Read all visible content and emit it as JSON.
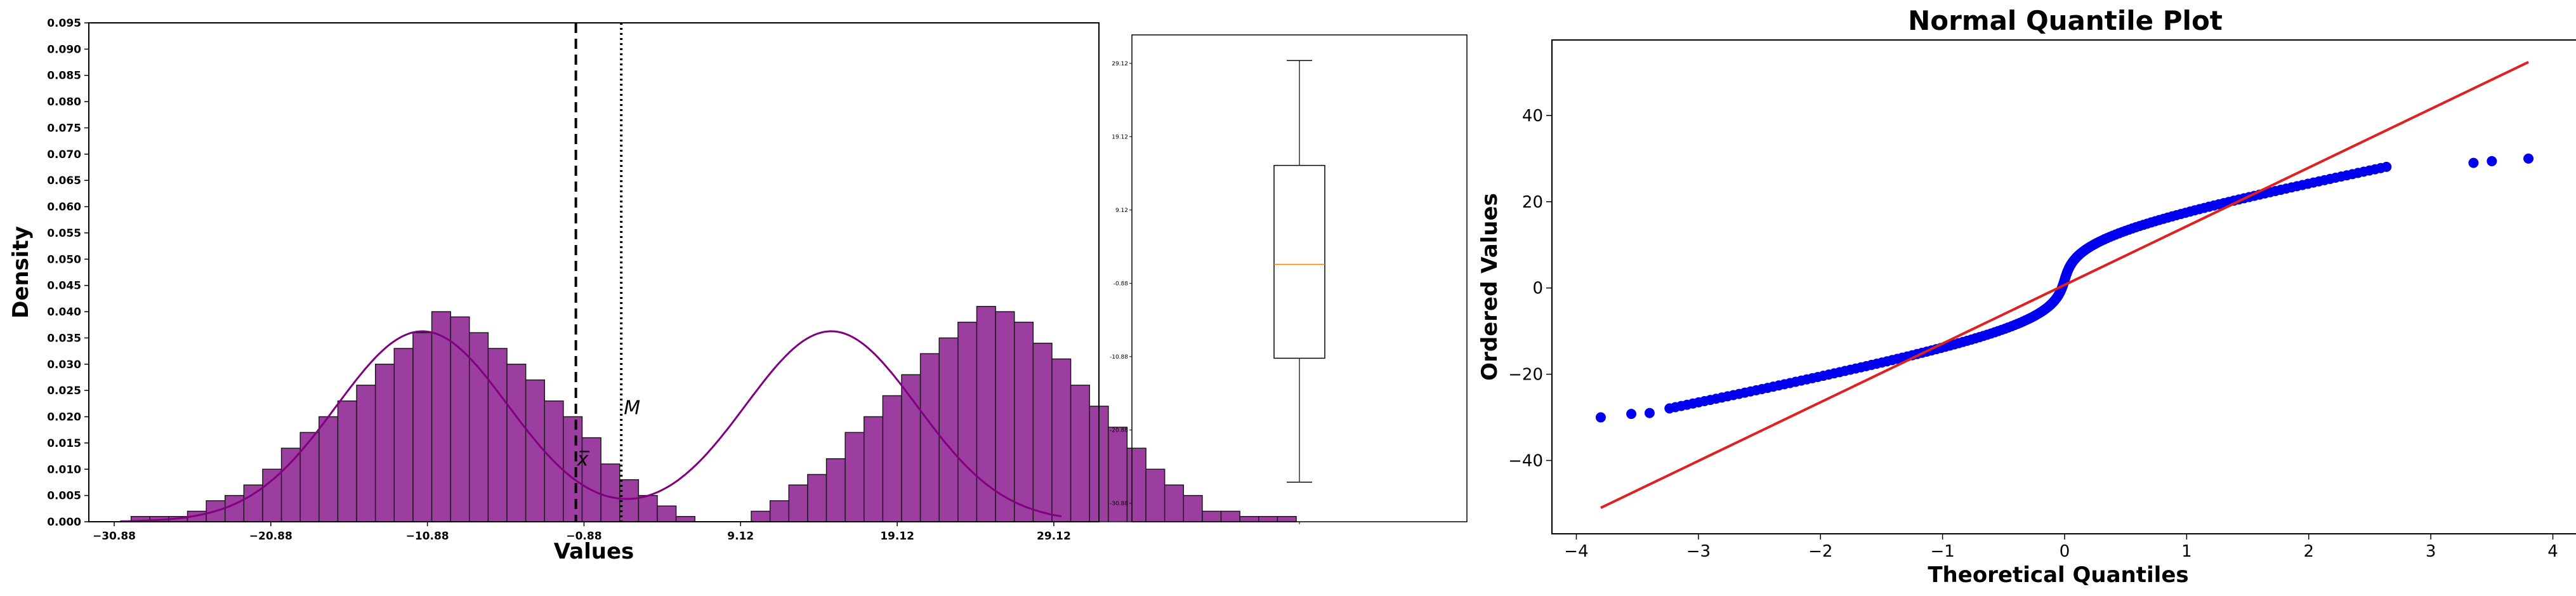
{
  "colors": {
    "bar_fill": "#9b3ea0",
    "bar_edge": "#1a1a1a",
    "kde_line": "#800080",
    "median_line": "#ff7f0e",
    "qq_points": "#0000ee",
    "qq_line": "#dd2222"
  },
  "chart_data": [
    {
      "type": "bar",
      "subtype": "histogram_with_kde",
      "xlabel": "Values",
      "ylabel": "Density",
      "xlim": [
        -32.5,
        32.0
      ],
      "ylim": [
        0,
        0.095
      ],
      "x_ticks": [
        -30.88,
        -20.88,
        -10.88,
        -0.88,
        9.12,
        19.12,
        29.12
      ],
      "x_tick_labels": [
        "−30.88",
        "−20.88",
        "−10.88",
        "−0.88",
        "9.12",
        "19.12",
        "29.12"
      ],
      "y_ticks": [
        "0.000",
        "0.005",
        "0.010",
        "0.015",
        "0.020",
        "0.025",
        "0.030",
        "0.035",
        "0.040",
        "0.045",
        "0.050",
        "0.055",
        "0.060",
        "0.065",
        "0.070",
        "0.075",
        "0.080",
        "0.085",
        "0.090",
        "0.095"
      ],
      "bin_start": -29.8,
      "bin_width": 1.2,
      "values": [
        0.001,
        0.001,
        0.001,
        0.002,
        0.004,
        0.005,
        0.007,
        0.01,
        0.014,
        0.017,
        0.02,
        0.023,
        0.026,
        0.03,
        0.033,
        0.036,
        0.04,
        0.039,
        0.036,
        0.033,
        0.03,
        0.027,
        0.023,
        0.02,
        0.016,
        0.011,
        0.008,
        0.005,
        0.003,
        0.001,
        0.0,
        0.0,
        0.0,
        0.002,
        0.004,
        0.007,
        0.009,
        0.012,
        0.017,
        0.02,
        0.024,
        0.028,
        0.032,
        0.035,
        0.038,
        0.041,
        0.04,
        0.038,
        0.034,
        0.031,
        0.026,
        0.022,
        0.018,
        0.014,
        0.01,
        0.007,
        0.005,
        0.002,
        0.002,
        0.001,
        0.001,
        0.001
      ],
      "kde_components": [
        {
          "mu": -11.2,
          "sigma": 5.5,
          "weight": 0.5
        },
        {
          "mu": 14.9,
          "sigma": 5.5,
          "weight": 0.5
        }
      ],
      "mean": -1.4,
      "median": 1.5,
      "mean_label": "x̅",
      "median_label": "M"
    },
    {
      "type": "box",
      "y_ticks": [
        "29.12",
        "19.12",
        "9.12",
        "-0.88",
        "-10.88",
        "-20.88",
        "-30.88"
      ],
      "ylim": [
        -33.4,
        33.0
      ],
      "whisker_high": 29.5,
      "q3": 15.2,
      "median": 1.7,
      "q1": -11.1,
      "whisker_low": -28.0
    },
    {
      "type": "scatter",
      "subtype": "normal_quantile_plot",
      "title": "Normal Quantile Plot",
      "xlabel": "Theoretical Quantiles",
      "ylabel": "Ordered Values",
      "xlim": [
        -4.2,
        4.2
      ],
      "ylim": [
        -57.0,
        57.5
      ],
      "x_ticks": [
        "−4",
        "−3",
        "−2",
        "−1",
        "0",
        "1",
        "2",
        "3",
        "4"
      ],
      "y_ticks": [
        "−40",
        "−20",
        "0",
        "20",
        "40"
      ],
      "fit_line": {
        "slope": 13.6,
        "intercept": 0.7,
        "x_range": [
          -3.8,
          3.8
        ]
      },
      "tail_points": [
        {
          "x": -3.8,
          "y": -30.0
        },
        {
          "x": -3.55,
          "y": -29.2
        },
        {
          "x": -3.4,
          "y": -29.0
        },
        {
          "x": 3.35,
          "y": 29.0
        },
        {
          "x": 3.5,
          "y": 29.4
        },
        {
          "x": 3.8,
          "y": 30.0
        }
      ]
    }
  ]
}
